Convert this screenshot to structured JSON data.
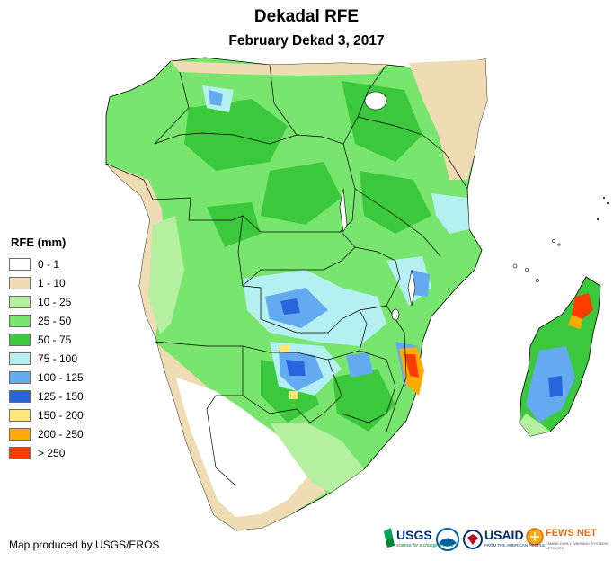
{
  "title": "Dekadal RFE",
  "subtitle": "February Dekad 3, 2017",
  "legend": {
    "title": "RFE (mm)",
    "items": [
      {
        "label": "0 - 1",
        "color": "#ffffff"
      },
      {
        "label": "1 - 10",
        "color": "#f0dcb4"
      },
      {
        "label": "10 - 25",
        "color": "#b4f0a0"
      },
      {
        "label": "25 - 50",
        "color": "#78e66e"
      },
      {
        "label": "50 - 75",
        "color": "#3cc83c"
      },
      {
        "label": "75 - 100",
        "color": "#b4f0f0"
      },
      {
        "label": "100 - 125",
        "color": "#64aaf0"
      },
      {
        "label": "125 - 150",
        "color": "#2864dc"
      },
      {
        "label": "150 - 200",
        "color": "#ffe678"
      },
      {
        "label": "200 - 250",
        "color": "#ffaa00"
      },
      {
        "label": "> 250",
        "color": "#ff3c00"
      }
    ]
  },
  "credit": "Map produced by USGS/EROS",
  "logos": {
    "usgs": "USGS",
    "usgs_tagline": "science for a changing world",
    "usaid": "USAID",
    "usaid_tagline": "FROM THE AMERICAN PEOPLE",
    "fews": "FEWS NET",
    "fews_tagline": "FAMINE EARLY WARNING SYSTEMS NETWORK"
  }
}
